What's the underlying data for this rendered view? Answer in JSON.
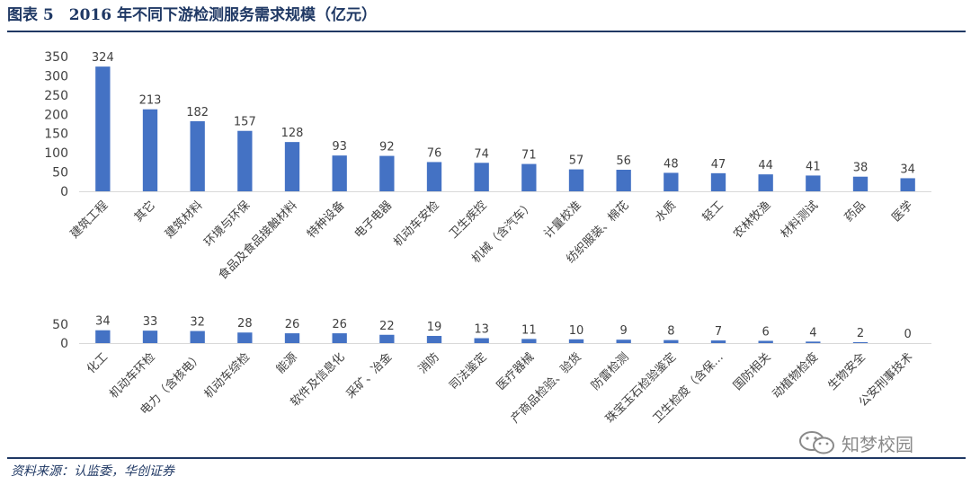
{
  "header": {
    "title": "图表 5　2016 年不同下游检测服务需求规模（亿元）"
  },
  "footer": {
    "source": "资料来源：认监委，华创证券"
  },
  "watermark": {
    "text": "知梦校园",
    "icon": "wechat-icon"
  },
  "colors": {
    "bar": "#4472c4",
    "title": "#1f3864",
    "axis": "#d9d9d9",
    "text": "#404040"
  },
  "chart_data": [
    {
      "type": "bar",
      "categories": [
        "建筑工程",
        "其它",
        "建筑材料",
        "环境与环保",
        "食品及食品接触材料",
        "特种设备",
        "电子电器",
        "机动车安检",
        "卫生疾控",
        "机械（含汽车）",
        "计量校准",
        "纺织服装、棉花",
        "水质",
        "轻工",
        "农林牧渔",
        "材料测试",
        "药品",
        "医学"
      ],
      "values": [
        324,
        213,
        182,
        157,
        128,
        93,
        92,
        76,
        74,
        71,
        57,
        56,
        48,
        47,
        44,
        41,
        38,
        34
      ],
      "yticks": [
        0,
        50,
        100,
        150,
        200,
        250,
        300,
        350
      ],
      "ylim": [
        0,
        350
      ]
    },
    {
      "type": "bar",
      "categories": [
        "化工",
        "机动车环检",
        "电力（含核电）",
        "机动车综检",
        "能源",
        "软件及信息化",
        "采矿、冶金",
        "消防",
        "司法鉴定",
        "医疗器械",
        "产商品检验、验货",
        "防雷检测",
        "珠宝玉石检验鉴定",
        "卫生检疫（含保…",
        "国防相关",
        "动植物检疫",
        "生物安全",
        "公安刑事技术"
      ],
      "values": [
        34,
        33,
        32,
        28,
        26,
        26,
        22,
        19,
        13,
        11,
        10,
        9,
        8,
        7,
        6,
        4,
        2,
        0
      ],
      "yticks": [
        0,
        50
      ],
      "ylim": [
        0,
        50
      ]
    }
  ]
}
